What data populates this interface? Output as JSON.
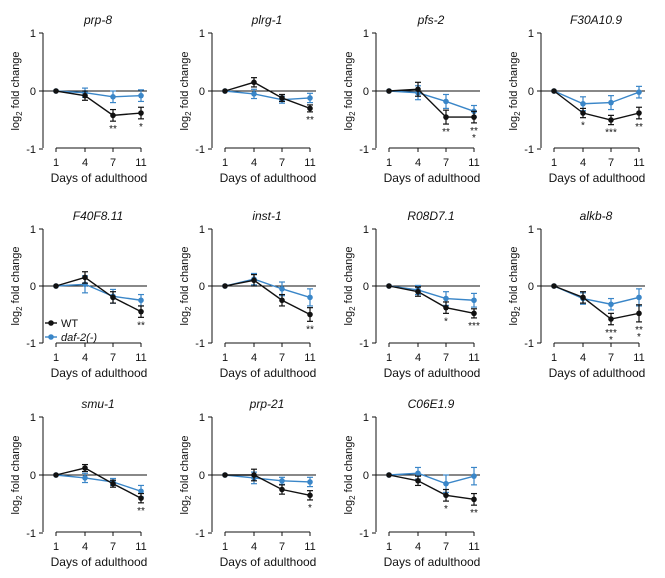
{
  "figure": {
    "axis_ticks": [
      "-1",
      "0",
      "1"
    ],
    "x_ticks": [
      "1",
      "4",
      "7",
      "11"
    ],
    "ylabel_prefix": "log",
    "ylabel_sub": "2",
    "ylabel_suffix": " fold change",
    "xlabel": "Days of adulthood",
    "legend": [
      {
        "label": "WT",
        "color": "#111111"
      },
      {
        "label": "daf-2(-)",
        "color": "#3a86c8"
      }
    ],
    "colors": {
      "wt": "#111111",
      "daf2": "#3a86c8",
      "axis": "#111111"
    }
  },
  "chart_data": [
    {
      "type": "line",
      "title": "prp-8",
      "x": [
        1,
        4,
        7,
        11
      ],
      "xlabel": "Days of adulthood",
      "ylabel": "log2 fold change",
      "ylim": [
        -1,
        1
      ],
      "series": [
        {
          "name": "WT",
          "values": [
            0,
            -0.08,
            -0.42,
            -0.38
          ],
          "errors": [
            0,
            0.08,
            0.1,
            0.1
          ]
        },
        {
          "name": "daf-2(-)",
          "values": [
            0,
            -0.03,
            -0.1,
            -0.08
          ],
          "errors": [
            0,
            0.08,
            0.1,
            0.1
          ]
        }
      ],
      "annotations": [
        {
          "x": 7,
          "text": "**",
          "color": "#111111"
        },
        {
          "x": 11,
          "text": "*",
          "color": "#111111"
        }
      ]
    },
    {
      "type": "line",
      "title": "plrg-1",
      "x": [
        1,
        4,
        7,
        11
      ],
      "xlabel": "Days of adulthood",
      "ylabel": "log2 fold change",
      "ylim": [
        -1,
        1
      ],
      "series": [
        {
          "name": "WT",
          "values": [
            0,
            0.15,
            -0.12,
            -0.3
          ],
          "errors": [
            0,
            0.08,
            0.06,
            0.06
          ]
        },
        {
          "name": "daf-2(-)",
          "values": [
            0,
            -0.05,
            -0.15,
            -0.12
          ],
          "errors": [
            0,
            0.08,
            0.06,
            0.08
          ]
        }
      ],
      "annotations": [
        {
          "x": 11,
          "text": "**",
          "color": "#111111"
        }
      ]
    },
    {
      "type": "line",
      "title": "pfs-2",
      "x": [
        1,
        4,
        7,
        11
      ],
      "xlabel": "Days of adulthood",
      "ylabel": "log2 fold change",
      "ylim": [
        -1,
        1
      ],
      "series": [
        {
          "name": "WT",
          "values": [
            0,
            0.03,
            -0.45,
            -0.45
          ],
          "errors": [
            0,
            0.12,
            0.12,
            0.1
          ]
        },
        {
          "name": "daf-2(-)",
          "values": [
            0,
            -0.03,
            -0.18,
            -0.35
          ],
          "errors": [
            0,
            0.12,
            0.12,
            0.1
          ]
        }
      ],
      "annotations": [
        {
          "x": 7,
          "text": "**",
          "color": "#111111"
        },
        {
          "x": 11,
          "text": "**",
          "color": "#111111"
        },
        {
          "x": 11,
          "text": "*",
          "color": "#3a86c8"
        }
      ]
    },
    {
      "type": "line",
      "title": "F30A10.9",
      "x": [
        1,
        4,
        7,
        11
      ],
      "xlabel": "Days of adulthood",
      "ylabel": "log2 fold change",
      "ylim": [
        -1,
        1
      ],
      "series": [
        {
          "name": "WT",
          "values": [
            0,
            -0.38,
            -0.5,
            -0.38
          ],
          "errors": [
            0,
            0.08,
            0.08,
            0.1
          ]
        },
        {
          "name": "daf-2(-)",
          "values": [
            0,
            -0.22,
            -0.2,
            -0.02
          ],
          "errors": [
            0,
            0.12,
            0.12,
            0.1
          ]
        }
      ],
      "annotations": [
        {
          "x": 4,
          "text": "*",
          "color": "#111111"
        },
        {
          "x": 7,
          "text": "***",
          "color": "#111111"
        },
        {
          "x": 11,
          "text": "**",
          "color": "#111111"
        }
      ]
    },
    {
      "type": "line",
      "title": "F40F8.11",
      "x": [
        1,
        4,
        7,
        11
      ],
      "xlabel": "Days of adulthood",
      "ylabel": "log2 fold change",
      "ylim": [
        -1,
        1
      ],
      "series": [
        {
          "name": "WT",
          "values": [
            0,
            0.15,
            -0.2,
            -0.45
          ],
          "errors": [
            0,
            0.1,
            0.1,
            0.1
          ]
        },
        {
          "name": "daf-2(-)",
          "values": [
            0,
            0.03,
            -0.18,
            -0.25
          ],
          "errors": [
            0,
            0.15,
            0.12,
            0.1
          ]
        }
      ],
      "annotations": [
        {
          "x": 11,
          "text": "**",
          "color": "#111111"
        }
      ]
    },
    {
      "type": "line",
      "title": "inst-1",
      "x": [
        1,
        4,
        7,
        11
      ],
      "xlabel": "Days of adulthood",
      "ylabel": "log2 fold change",
      "ylim": [
        -1,
        1
      ],
      "series": [
        {
          "name": "WT",
          "values": [
            0,
            0.1,
            -0.25,
            -0.5
          ],
          "errors": [
            0,
            0.1,
            0.1,
            0.12
          ]
        },
        {
          "name": "daf-2(-)",
          "values": [
            0,
            0.12,
            -0.05,
            -0.2
          ],
          "errors": [
            0,
            0.1,
            0.12,
            0.15
          ]
        }
      ],
      "annotations": [
        {
          "x": 11,
          "text": "**",
          "color": "#111111"
        }
      ]
    },
    {
      "type": "line",
      "title": "R08D7.1",
      "x": [
        1,
        4,
        7,
        11
      ],
      "xlabel": "Days of adulthood",
      "ylabel": "log2 fold change",
      "ylim": [
        -1,
        1
      ],
      "series": [
        {
          "name": "WT",
          "values": [
            0,
            -0.1,
            -0.38,
            -0.48
          ],
          "errors": [
            0,
            0.08,
            0.1,
            0.08
          ]
        },
        {
          "name": "daf-2(-)",
          "values": [
            0,
            -0.07,
            -0.22,
            -0.25
          ],
          "errors": [
            0,
            0.08,
            0.12,
            0.12
          ]
        }
      ],
      "annotations": [
        {
          "x": 7,
          "text": "*",
          "color": "#111111"
        },
        {
          "x": 11,
          "text": "***",
          "color": "#111111"
        }
      ]
    },
    {
      "type": "line",
      "title": "alkb-8",
      "x": [
        1,
        4,
        7,
        11
      ],
      "xlabel": "Days of adulthood",
      "ylabel": "log2 fold change",
      "ylim": [
        -1,
        1
      ],
      "series": [
        {
          "name": "WT",
          "values": [
            0,
            -0.2,
            -0.58,
            -0.48
          ],
          "errors": [
            0,
            0.1,
            0.1,
            0.15
          ]
        },
        {
          "name": "daf-2(-)",
          "values": [
            0,
            -0.22,
            -0.32,
            -0.2
          ],
          "errors": [
            0,
            0.1,
            0.1,
            0.15
          ]
        }
      ],
      "annotations": [
        {
          "x": 7,
          "text": "***",
          "color": "#111111"
        },
        {
          "x": 7,
          "text": "*",
          "color": "#3a86c8"
        },
        {
          "x": 11,
          "text": "**",
          "color": "#111111"
        },
        {
          "x": 11,
          "text": "*",
          "color": "#3a86c8"
        }
      ]
    },
    {
      "type": "line",
      "title": "smu-1",
      "x": [
        1,
        4,
        7,
        11
      ],
      "xlabel": "Days of adulthood",
      "ylabel": "log2 fold change",
      "ylim": [
        -1,
        1
      ],
      "series": [
        {
          "name": "WT",
          "values": [
            0,
            0.12,
            -0.15,
            -0.4
          ],
          "errors": [
            0,
            0.06,
            0.06,
            0.08
          ]
        },
        {
          "name": "daf-2(-)",
          "values": [
            0,
            -0.05,
            -0.12,
            -0.28
          ],
          "errors": [
            0,
            0.08,
            0.06,
            0.1
          ]
        }
      ],
      "annotations": [
        {
          "x": 11,
          "text": "**",
          "color": "#111111"
        }
      ]
    },
    {
      "type": "line",
      "title": "prp-21",
      "x": [
        1,
        4,
        7,
        11
      ],
      "xlabel": "Days of adulthood",
      "ylabel": "log2 fold change",
      "ylim": [
        -1,
        1
      ],
      "series": [
        {
          "name": "WT",
          "values": [
            0,
            0,
            -0.25,
            -0.35
          ],
          "errors": [
            0,
            0.1,
            0.08,
            0.08
          ]
        },
        {
          "name": "daf-2(-)",
          "values": [
            0,
            -0.05,
            -0.1,
            -0.12
          ],
          "errors": [
            0,
            0.1,
            0.06,
            0.08
          ]
        }
      ],
      "annotations": [
        {
          "x": 11,
          "text": "*",
          "color": "#111111"
        }
      ]
    },
    {
      "type": "line",
      "title": "C06E1.9",
      "x": [
        1,
        4,
        7,
        11
      ],
      "xlabel": "Days of adulthood",
      "ylabel": "log2 fold change",
      "ylim": [
        -1,
        1
      ],
      "series": [
        {
          "name": "WT",
          "values": [
            0,
            -0.1,
            -0.35,
            -0.42
          ],
          "errors": [
            0,
            0.08,
            0.1,
            0.1
          ]
        },
        {
          "name": "daf-2(-)",
          "values": [
            0,
            0.03,
            -0.15,
            -0.02
          ],
          "errors": [
            0,
            0.1,
            0.15,
            0.15
          ]
        }
      ],
      "annotations": [
        {
          "x": 7,
          "text": "*",
          "color": "#111111"
        },
        {
          "x": 11,
          "text": "**",
          "color": "#111111"
        }
      ]
    }
  ]
}
